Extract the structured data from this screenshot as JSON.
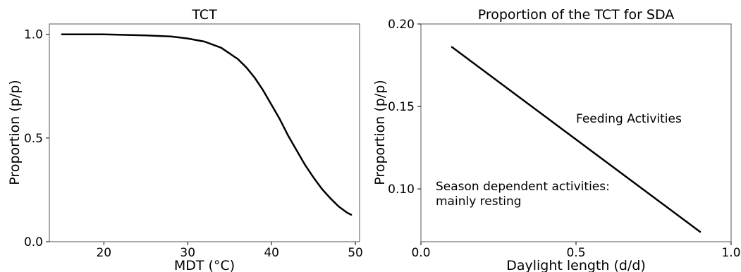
{
  "chart_data": [
    {
      "type": "line",
      "title": "TCT",
      "xlabel": "MDT (°C)",
      "ylabel": "Proportion (p/p)",
      "xlim": [
        13.5,
        50.5
      ],
      "ylim": [
        0.0,
        1.05
      ],
      "xticks": [
        20,
        30,
        40,
        50
      ],
      "xtick_labels": [
        "20",
        "30",
        "40",
        "50"
      ],
      "yticks": [
        0.0,
        0.5,
        1.0
      ],
      "ytick_labels": [
        "0.0",
        "0.5",
        "1.0"
      ],
      "grid": false,
      "series": [
        {
          "x": [
            15,
            20,
            25,
            28,
            30,
            32,
            34,
            36,
            37,
            38,
            39,
            40,
            41,
            42,
            43,
            44,
            45,
            46,
            47,
            48,
            49,
            49.5
          ],
          "y": [
            1.0,
            1.0,
            0.995,
            0.99,
            0.98,
            0.965,
            0.935,
            0.88,
            0.84,
            0.79,
            0.73,
            0.66,
            0.59,
            0.51,
            0.44,
            0.37,
            0.31,
            0.255,
            0.21,
            0.17,
            0.14,
            0.13
          ]
        }
      ]
    },
    {
      "type": "line",
      "title": "Proportion of the TCT for SDA",
      "xlabel": "Daylight length (d/d)",
      "ylabel": "Proportion (p/p)",
      "xlim": [
        0.0,
        1.0
      ],
      "ylim": [
        0.068,
        0.2
      ],
      "xticks": [
        0.0,
        0.5,
        1.0
      ],
      "xtick_labels": [
        "0.0",
        "0.5",
        "1.0"
      ],
      "yticks": [
        0.1,
        0.15,
        0.2
      ],
      "ytick_labels": [
        "0.10",
        "0.15",
        "0.20"
      ],
      "grid": false,
      "annotations": [
        "Feeding Activities",
        "Season dependent activities:",
        "mainly resting"
      ],
      "series": [
        {
          "x": [
            0.1,
            0.9
          ],
          "y": [
            0.186,
            0.074
          ]
        }
      ]
    }
  ]
}
